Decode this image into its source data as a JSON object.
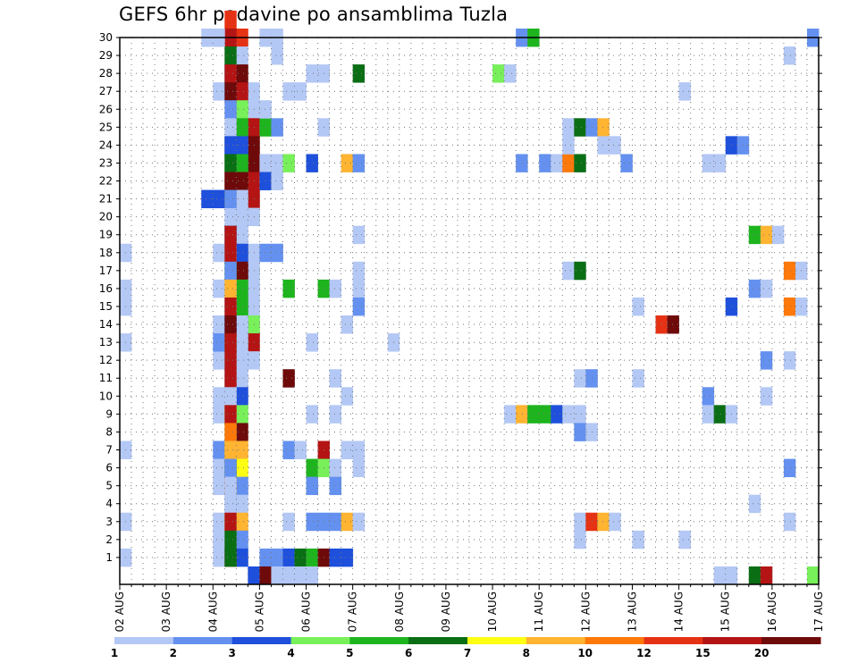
{
  "chart_data": {
    "type": "heatmap",
    "title": "GEFS 6hr padavine po ansamblima Tuzla",
    "xlabel": "",
    "ylabel": "",
    "x_ticks": [
      "02 AUG",
      "03 AUG",
      "04 AUG",
      "05 AUG",
      "06 AUG",
      "07 AUG",
      "08 AUG",
      "09 AUG",
      "10 AUG",
      "11 AUG",
      "12 AUG",
      "13 AUG",
      "14 AUG",
      "15 AUG",
      "16 AUG",
      "17 AUG"
    ],
    "y_ticks": [
      1,
      2,
      3,
      4,
      5,
      6,
      7,
      8,
      9,
      10,
      11,
      12,
      13,
      14,
      15,
      16,
      17,
      18,
      19,
      20,
      21,
      22,
      23,
      24,
      25,
      26,
      27,
      28,
      29,
      30
    ],
    "x_range": [
      0,
      60
    ],
    "y_range": [
      0,
      30
    ],
    "grid": "dotted",
    "legend_placement": "bottom",
    "legend": {
      "colors": [
        "#b4c8f5",
        "#6491f0",
        "#1e50dc",
        "#78f05a",
        "#1eb41e",
        "#0a6e14",
        "#ffff14",
        "#ffb432",
        "#ff780a",
        "#e63214",
        "#b41414",
        "#6e0a0a"
      ],
      "labels": [
        "1",
        "2",
        "3",
        "4",
        "5",
        "6",
        "7",
        "8",
        "10",
        "12",
        "15",
        "20"
      ]
    },
    "cells": [
      [
        0,
        1,
        1
      ],
      [
        0,
        3,
        1
      ],
      [
        0,
        7,
        1
      ],
      [
        0,
        13,
        1
      ],
      [
        0,
        15,
        1
      ],
      [
        0,
        16,
        1
      ],
      [
        0,
        18,
        1
      ],
      [
        8,
        18,
        1
      ],
      [
        8,
        16,
        1
      ],
      [
        8,
        14,
        1
      ],
      [
        8,
        12,
        1
      ],
      [
        8,
        10,
        1
      ],
      [
        8,
        9,
        1
      ],
      [
        8,
        7,
        2
      ],
      [
        8,
        5,
        1
      ],
      [
        8,
        6,
        1
      ],
      [
        8,
        3,
        1
      ],
      [
        8,
        2,
        1
      ],
      [
        8,
        1,
        1
      ],
      [
        8,
        13,
        2
      ],
      [
        8,
        27,
        1
      ],
      [
        8,
        30,
        1
      ],
      [
        7,
        30,
        1
      ],
      [
        8,
        21,
        3
      ],
      [
        7,
        21,
        3
      ],
      [
        9,
        31,
        10
      ],
      [
        9,
        27,
        2
      ],
      [
        9,
        28,
        3
      ],
      [
        9,
        23,
        5
      ],
      [
        9,
        24,
        3
      ],
      [
        9,
        22,
        10
      ],
      [
        9,
        21,
        6
      ],
      [
        11,
        27,
        1
      ],
      [
        11,
        26,
        1
      ],
      [
        11,
        25,
        11
      ],
      [
        11,
        24,
        12
      ],
      [
        11,
        23,
        12
      ],
      [
        11,
        22,
        11
      ],
      [
        11,
        21,
        11
      ],
      [
        11,
        20,
        1
      ],
      [
        11,
        18,
        1
      ],
      [
        11,
        17,
        1
      ],
      [
        11,
        16,
        1
      ],
      [
        11,
        15,
        1
      ],
      [
        11,
        14,
        4
      ],
      [
        11,
        13,
        11
      ],
      [
        11,
        12,
        1
      ],
      [
        10,
        30,
        10
      ],
      [
        10,
        29,
        1
      ],
      [
        10,
        28,
        12
      ],
      [
        10,
        27,
        11
      ],
      [
        10,
        26,
        4
      ],
      [
        10,
        25,
        5
      ],
      [
        10,
        24,
        3
      ],
      [
        10,
        23,
        5
      ],
      [
        10,
        22,
        12
      ],
      [
        10,
        21,
        1
      ],
      [
        10,
        20,
        1
      ],
      [
        10,
        19,
        1
      ],
      [
        10,
        18,
        3
      ],
      [
        10,
        17,
        12
      ],
      [
        10,
        16,
        5
      ],
      [
        10,
        15,
        5
      ],
      [
        10,
        14,
        1
      ],
      [
        10,
        13,
        1
      ],
      [
        10,
        12,
        1
      ],
      [
        10,
        11,
        1
      ],
      [
        10,
        10,
        3
      ],
      [
        10,
        9,
        4
      ],
      [
        10,
        8,
        12
      ],
      [
        10,
        7,
        8
      ],
      [
        10,
        6,
        7
      ],
      [
        10,
        5,
        2
      ],
      [
        10,
        4,
        1
      ],
      [
        10,
        3,
        8
      ],
      [
        10,
        2,
        2
      ],
      [
        10,
        1,
        3
      ],
      [
        9,
        20,
        1
      ],
      [
        9,
        19,
        3
      ],
      [
        9,
        18,
        1
      ],
      [
        9,
        17,
        5
      ],
      [
        9,
        16,
        1
      ],
      [
        9,
        15,
        1
      ],
      [
        9,
        14,
        3
      ],
      [
        9,
        13,
        5
      ],
      [
        9,
        12,
        1
      ],
      [
        9,
        11,
        1
      ],
      [
        9,
        10,
        1
      ],
      [
        9,
        9,
        7
      ],
      [
        9,
        8,
        4
      ],
      [
        9,
        7,
        8
      ],
      [
        9,
        6,
        6
      ],
      [
        9,
        5,
        9
      ],
      [
        9,
        4,
        2
      ],
      [
        9,
        3,
        7
      ],
      [
        9,
        1,
        11
      ],
      [
        9,
        30,
        11
      ],
      [
        8,
        30,
        1
      ],
      [
        9,
        29,
        6
      ],
      [
        9,
        28,
        11
      ],
      [
        9,
        27,
        12
      ],
      [
        9,
        26,
        2
      ],
      [
        9,
        25,
        1
      ],
      [
        9,
        24,
        3
      ],
      [
        9,
        23,
        6
      ],
      [
        9,
        22,
        12
      ],
      [
        9,
        21,
        2
      ],
      [
        9,
        19,
        11
      ],
      [
        9,
        18,
        11
      ],
      [
        9,
        17,
        2
      ],
      [
        9,
        16,
        8
      ],
      [
        9,
        15,
        11
      ],
      [
        9,
        14,
        12
      ],
      [
        9,
        13,
        11
      ],
      [
        9,
        12,
        11
      ],
      [
        9,
        11,
        11
      ],
      [
        9,
        10,
        1
      ],
      [
        9,
        9,
        11
      ],
      [
        9,
        8,
        9
      ],
      [
        9,
        7,
        8
      ],
      [
        9,
        6,
        2
      ],
      [
        9,
        5,
        1
      ],
      [
        9,
        4,
        1
      ],
      [
        9,
        3,
        11
      ],
      [
        9,
        2,
        6
      ],
      [
        9,
        1,
        6
      ],
      [
        12,
        30,
        1
      ],
      [
        12,
        25,
        5
      ],
      [
        12,
        23,
        1
      ],
      [
        12,
        22,
        3
      ],
      [
        12,
        18,
        2
      ],
      [
        12,
        1,
        2
      ],
      [
        12,
        26,
        1
      ],
      [
        13,
        30,
        1
      ],
      [
        13,
        25,
        2
      ],
      [
        13,
        23,
        1
      ],
      [
        13,
        22,
        1
      ],
      [
        13,
        18,
        2
      ],
      [
        13,
        1,
        2
      ],
      [
        13,
        29,
        1
      ],
      [
        14,
        27,
        1
      ],
      [
        14,
        23,
        4
      ],
      [
        14,
        16,
        5
      ],
      [
        14,
        11,
        12
      ],
      [
        14,
        7,
        2
      ],
      [
        14,
        3,
        1
      ],
      [
        14,
        1,
        3
      ],
      [
        15,
        27,
        1
      ],
      [
        15,
        7,
        1
      ],
      [
        15,
        1,
        6
      ],
      [
        16,
        28,
        1
      ],
      [
        16,
        23,
        3
      ],
      [
        16,
        13,
        1
      ],
      [
        16,
        9,
        1
      ],
      [
        16,
        6,
        5
      ],
      [
        16,
        5,
        2
      ],
      [
        16,
        3,
        2
      ],
      [
        16,
        1,
        5
      ],
      [
        17,
        28,
        1
      ],
      [
        17,
        25,
        1
      ],
      [
        17,
        16,
        5
      ],
      [
        17,
        7,
        11
      ],
      [
        17,
        6,
        4
      ],
      [
        17,
        3,
        2
      ],
      [
        17,
        1,
        12
      ],
      [
        18,
        9,
        1
      ],
      [
        18,
        6,
        1
      ],
      [
        18,
        5,
        2
      ],
      [
        18,
        3,
        2
      ],
      [
        18,
        1,
        3
      ],
      [
        18,
        11,
        1
      ],
      [
        18,
        16,
        1
      ],
      [
        19,
        23,
        8
      ],
      [
        19,
        14,
        1
      ],
      [
        19,
        10,
        1
      ],
      [
        19,
        7,
        1
      ],
      [
        19,
        3,
        8
      ],
      [
        19,
        1,
        3
      ],
      [
        20,
        28,
        6
      ],
      [
        20,
        23,
        2
      ],
      [
        20,
        19,
        1
      ],
      [
        20,
        17,
        1
      ],
      [
        20,
        16,
        1
      ],
      [
        20,
        15,
        2
      ],
      [
        20,
        7,
        1
      ],
      [
        20,
        6,
        1
      ],
      [
        20,
        3,
        1
      ],
      [
        23,
        13,
        1
      ],
      [
        32,
        28,
        4
      ],
      [
        33,
        28,
        1
      ],
      [
        33,
        9,
        1
      ],
      [
        34,
        9,
        8
      ],
      [
        35,
        9,
        5
      ],
      [
        36,
        9,
        5
      ],
      [
        37,
        9,
        3
      ],
      [
        38,
        9,
        1
      ],
      [
        34,
        30,
        2
      ],
      [
        35,
        30,
        5
      ],
      [
        34,
        23,
        2
      ],
      [
        36,
        23,
        2
      ],
      [
        37,
        23,
        1
      ],
      [
        38,
        23,
        9
      ],
      [
        39,
        23,
        6
      ],
      [
        38,
        24,
        1
      ],
      [
        38,
        25,
        1
      ],
      [
        39,
        25,
        6
      ],
      [
        40,
        25,
        2
      ],
      [
        41,
        25,
        8
      ],
      [
        38,
        17,
        1
      ],
      [
        39,
        17,
        6
      ],
      [
        39,
        11,
        1
      ],
      [
        40,
        11,
        2
      ],
      [
        39,
        9,
        1
      ],
      [
        39,
        8,
        2
      ],
      [
        40,
        8,
        1
      ],
      [
        39,
        3,
        1
      ],
      [
        39,
        2,
        1
      ],
      [
        40,
        3,
        10
      ],
      [
        41,
        3,
        8
      ],
      [
        42,
        3,
        1
      ],
      [
        41,
        24,
        1
      ],
      [
        42,
        24,
        1
      ],
      [
        43,
        23,
        2
      ],
      [
        44,
        15,
        1
      ],
      [
        44,
        11,
        1
      ],
      [
        44,
        2,
        1
      ],
      [
        46,
        14,
        10
      ],
      [
        47,
        14,
        12
      ],
      [
        48,
        27,
        1
      ],
      [
        48,
        2,
        1
      ],
      [
        50,
        23,
        1
      ],
      [
        51,
        23,
        1
      ],
      [
        50,
        10,
        2
      ],
      [
        50,
        9,
        1
      ],
      [
        51,
        9,
        6
      ],
      [
        52,
        9,
        1
      ],
      [
        52,
        24,
        3
      ],
      [
        53,
        24,
        2
      ],
      [
        52,
        15,
        3
      ],
      [
        51,
        0,
        1
      ],
      [
        52,
        0,
        1
      ],
      [
        54,
        19,
        5
      ],
      [
        55,
        19,
        8
      ],
      [
        56,
        19,
        1
      ],
      [
        54,
        16,
        2
      ],
      [
        55,
        16,
        1
      ],
      [
        54,
        4,
        1
      ],
      [
        55,
        12,
        2
      ],
      [
        55,
        10,
        1
      ],
      [
        54,
        0,
        6
      ],
      [
        55,
        0,
        11
      ],
      [
        57,
        29,
        1
      ],
      [
        57,
        17,
        9
      ],
      [
        58,
        17,
        1
      ],
      [
        57,
        15,
        9
      ],
      [
        58,
        15,
        1
      ],
      [
        57,
        12,
        1
      ],
      [
        57,
        6,
        2
      ],
      [
        57,
        3,
        1
      ],
      [
        59,
        30,
        2
      ],
      [
        59,
        0,
        4
      ],
      [
        11,
        0,
        3
      ],
      [
        12,
        0,
        12
      ],
      [
        13,
        0,
        1
      ],
      [
        14,
        0,
        1
      ],
      [
        15,
        0,
        1
      ],
      [
        16,
        0,
        1
      ]
    ]
  }
}
